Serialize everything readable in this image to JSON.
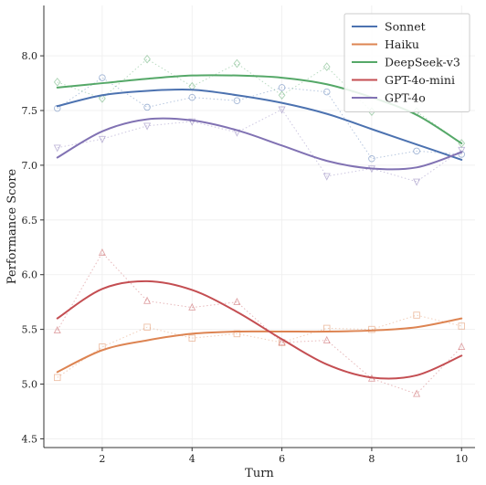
{
  "chart_data": {
    "type": "line",
    "title": "",
    "xlabel": "Turn",
    "ylabel": "Performance Score",
    "xlim": [
      0.7,
      10.3
    ],
    "ylim": [
      4.42,
      8.46
    ],
    "xticks": [
      2,
      4,
      6,
      8,
      10
    ],
    "yticks": [
      4.5,
      5.0,
      5.5,
      6.0,
      6.5,
      7.0,
      7.5,
      8.0
    ],
    "ytick_labels": [
      "4.5",
      "5.0",
      "5.5",
      "6.0",
      "6.5",
      "7.0",
      "7.5",
      "8.0"
    ],
    "xtick_labels": [
      "2",
      "4",
      "6",
      "8",
      "10"
    ],
    "grid": true,
    "legend_position": "top-right",
    "x": [
      1,
      2,
      3,
      4,
      5,
      6,
      7,
      8,
      9,
      10
    ],
    "series": [
      {
        "name": "Sonnet",
        "color": "#4c72b0",
        "marker": "circle",
        "values": [
          7.52,
          7.8,
          7.53,
          7.62,
          7.59,
          7.71,
          7.67,
          7.06,
          7.13,
          7.1
        ],
        "trend": [
          7.54,
          7.64,
          7.68,
          7.69,
          7.64,
          7.57,
          7.47,
          7.33,
          7.19,
          7.05
        ]
      },
      {
        "name": "Haiku",
        "color": "#dd8452",
        "marker": "square",
        "values": [
          5.06,
          5.34,
          5.52,
          5.42,
          5.46,
          5.38,
          5.51,
          5.5,
          5.63,
          5.53
        ],
        "trend": [
          5.11,
          5.31,
          5.4,
          5.46,
          5.48,
          5.48,
          5.48,
          5.49,
          5.52,
          5.6
        ]
      },
      {
        "name": "DeepSeek-v3",
        "color": "#55a868",
        "marker": "diamond",
        "values": [
          7.76,
          7.61,
          7.97,
          7.72,
          7.93,
          7.64,
          7.9,
          7.49,
          7.49,
          7.2
        ],
        "trend": [
          7.71,
          7.75,
          7.79,
          7.82,
          7.82,
          7.8,
          7.74,
          7.62,
          7.46,
          7.2
        ]
      },
      {
        "name": "GPT-4o-mini",
        "color": "#c44e52",
        "marker": "triangle-up",
        "values": [
          5.49,
          6.2,
          5.76,
          5.7,
          5.75,
          5.38,
          5.4,
          5.05,
          4.91,
          5.34
        ],
        "trend": [
          5.6,
          5.87,
          5.94,
          5.86,
          5.66,
          5.41,
          5.18,
          5.06,
          5.08,
          5.26
        ]
      },
      {
        "name": "GPT-4o",
        "color": "#8172b3",
        "marker": "triangle-down",
        "values": [
          7.16,
          7.24,
          7.36,
          7.4,
          7.3,
          7.51,
          6.9,
          6.97,
          6.85,
          7.14
        ],
        "trend": [
          7.07,
          7.31,
          7.42,
          7.41,
          7.32,
          7.18,
          7.04,
          6.97,
          6.98,
          7.12
        ]
      }
    ]
  }
}
